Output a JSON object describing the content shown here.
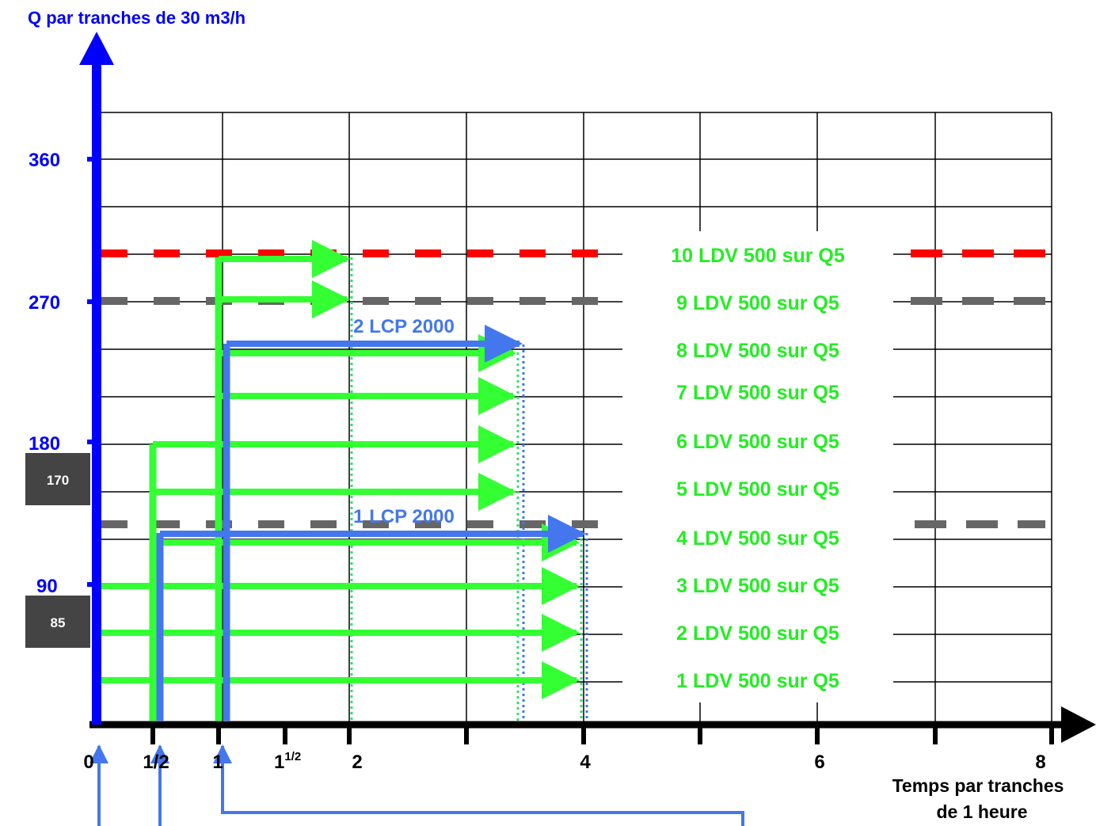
{
  "y_axis": {
    "title": "Q par tranches de 30 m3/h",
    "ticks": [
      "360",
      "270",
      "180",
      "90"
    ]
  },
  "x_axis": {
    "title_line1": "Temps par tranches",
    "title_line2": "de 1 heure",
    "ticks": [
      "0",
      "1/2",
      "1",
      "2",
      "4",
      "6",
      "8"
    ],
    "tick_one_half_base": "1",
    "tick_one_half_sup": "1/2"
  },
  "boxes": [
    "170",
    "85"
  ],
  "rows": [
    "10 LDV  500 sur Q5",
    "9 LDV  500 sur Q5",
    "8 LDV  500 sur Q5",
    "7 LDV  500 sur Q5",
    "6 LDV  500 sur Q5",
    "5 LDV  500 sur Q5",
    "4 LDV  500 sur Q5",
    "3 LDV  500 sur Q5",
    "2 LDV  500 sur Q5",
    "1 LDV  500 sur Q5"
  ],
  "lcp": [
    "2 LCP 2000",
    "1 LCP 2000"
  ],
  "colors": {
    "axis": "#0000ff",
    "green": "#33ff33",
    "green_text": "#22ee22",
    "lcp_blue": "#4477ee",
    "red": "#ff0000",
    "grey_dash": "#666666",
    "box": "#444444"
  }
}
